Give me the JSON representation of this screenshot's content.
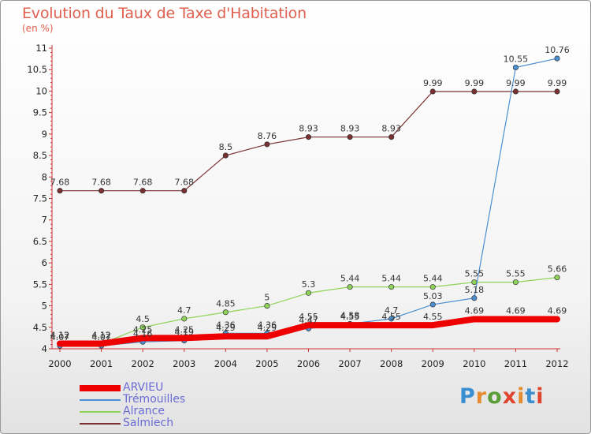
{
  "title": "Evolution du Taux de Taxe d'Habitation",
  "subtitle": "(en %)",
  "brand": {
    "text": "Proxiti",
    "colors": [
      "#3a8fd0",
      "#e68a2e",
      "#5a9e3a",
      "#e0442e",
      "#e68a2e",
      "#3a8fd0",
      "#e0442e"
    ]
  },
  "chart_data": {
    "type": "line",
    "title": "Evolution du Taux de Taxe d'Habitation",
    "subtitle": "(en %)",
    "xlabel": "",
    "ylabel": "",
    "x": [
      2000,
      2001,
      2002,
      2003,
      2004,
      2005,
      2006,
      2007,
      2008,
      2009,
      2010,
      2011,
      2012
    ],
    "ylim": [
      4,
      11
    ],
    "yticks": [
      "4",
      "4.5",
      "5",
      "5.5",
      "6",
      "6.5",
      "7",
      "7.5",
      "8",
      "8.5",
      "9",
      "9.5",
      "10",
      "10.5",
      "11"
    ],
    "grid": false,
    "legend_position": "bottom-left",
    "series": [
      {
        "name": "ARVIEU",
        "color": "#ee0000",
        "values": [
          4.12,
          4.12,
          4.25,
          4.25,
          4.29,
          4.29,
          4.55,
          4.55,
          4.55,
          4.55,
          4.69,
          4.69,
          4.69
        ],
        "labels": [
          "4.12",
          "4.12",
          "4.25",
          "4.25",
          "4.29",
          "4.29",
          "4.55",
          "4.55",
          "4.55",
          "4.55",
          "4.69",
          "4.69",
          "4.69"
        ]
      },
      {
        "name": "Trémouilles",
        "color": "#4b8fd1",
        "values": [
          4.07,
          4.07,
          4.16,
          4.19,
          4.36,
          4.36,
          4.47,
          4.58,
          4.7,
          5.03,
          5.18,
          10.55,
          10.76
        ],
        "labels": [
          "4.07",
          "4.07",
          "4.16",
          "4.19",
          "4.36",
          "4.36",
          "4.47",
          "4.58",
          "4.7",
          "5.03",
          "5.18",
          "10.55",
          "10.76"
        ]
      },
      {
        "name": "Alrance",
        "color": "#8fd45a",
        "values": [
          4.12,
          4.12,
          4.5,
          4.7,
          4.85,
          5,
          5.3,
          5.44,
          5.44,
          5.44,
          5.55,
          5.55,
          5.66
        ],
        "labels": [
          "4.12",
          "4.12",
          "4.5",
          "4.7",
          "4.85",
          "5",
          "5.3",
          "5.44",
          "5.44",
          "5.44",
          "5.55",
          "5.55",
          "5.66"
        ]
      },
      {
        "name": "Salmiech",
        "color": "#7a3030",
        "values": [
          7.68,
          7.68,
          7.68,
          7.68,
          8.5,
          8.76,
          8.93,
          8.93,
          8.93,
          9.99,
          9.99,
          9.99,
          9.99
        ],
        "labels": [
          "7.68",
          "7.68",
          "7.68",
          "7.68",
          "8.5",
          "8.76",
          "8.93",
          "8.93",
          "8.93",
          "9.99",
          "9.99",
          "9.99",
          "9.99"
        ]
      }
    ]
  }
}
